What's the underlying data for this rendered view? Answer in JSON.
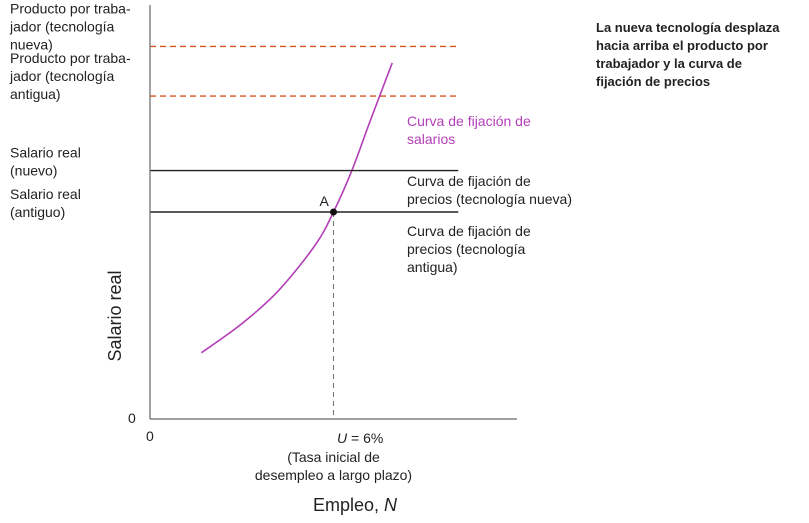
{
  "chart_data": {
    "type": "line",
    "title": "",
    "ylabel": "Salario real",
    "xlabel": "Empleo, ",
    "xlabel_italic": "N",
    "origin_x_label": "0",
    "origin_y_label": "0",
    "annotation": "La nueva tecnología desplaza hacia arriba el producto por trabajador y la curva de fijación de precios",
    "annotation_lines": [
      "La nueva tecnología desplaza",
      "hacia arriba el producto por",
      "trabajador y la curva de",
      "fijación de precios"
    ],
    "ylim": [
      0,
      10
    ],
    "xlim": [
      0,
      10
    ],
    "levels": {
      "prod_new": 9.0,
      "prod_old": 7.8,
      "wage_new": 6.0,
      "wage_old": 5.0
    },
    "y_labels": [
      {
        "key": "prod_new",
        "lines": [
          "Producto por traba-",
          "jador (tecnología",
          "nueva)"
        ]
      },
      {
        "key": "prod_old",
        "lines": [
          "Producto por traba-",
          "jador (tecnología",
          "antigua)"
        ]
      },
      {
        "key": "wage_new",
        "lines": [
          "Salario real",
          "(nuevo)"
        ]
      },
      {
        "key": "wage_old",
        "lines": [
          "Salario real",
          "(antiguo)"
        ]
      }
    ],
    "series": [
      {
        "name": "Curva de fijación de salarios",
        "label_lines": [
          "Curva de fijación de",
          "salarios"
        ],
        "color": "#b33fb8",
        "x": [
          1.4,
          2.5,
          3.5,
          4.5,
          5.0,
          5.5,
          6.0,
          6.6
        ],
        "y": [
          1.6,
          2.3,
          3.1,
          4.2,
          5.0,
          6.0,
          7.2,
          8.6
        ]
      },
      {
        "name": "Curva de fijación de precios (tecnología nueva)",
        "label_lines": [
          "Curva de fijación de",
          "precios (tecnología nueva)"
        ],
        "color": "#222222",
        "x": [
          0,
          8.4
        ],
        "y": [
          6.0,
          6.0
        ]
      },
      {
        "name": "Curva de fijación de precios (tecnología antigua)",
        "label_lines": [
          "Curva de fijación de",
          "precios (tecnología",
          "antigua)"
        ],
        "color": "#222222",
        "x": [
          0,
          8.4
        ],
        "y": [
          5.0,
          5.0
        ]
      }
    ],
    "dashed_lines": [
      {
        "key": "prod_new",
        "y": 9.0,
        "color": "#d9531e"
      },
      {
        "key": "prod_old",
        "y": 7.8,
        "color": "#d9531e"
      }
    ],
    "point": {
      "name": "A",
      "x": 5.0,
      "y": 5.0
    },
    "x_annotation": {
      "value_prefix": "U",
      "value_suffix": " = 6%",
      "lines": [
        "(Tasa inicial de",
        "desempleo a largo plazo)"
      ]
    },
    "grid": false
  }
}
